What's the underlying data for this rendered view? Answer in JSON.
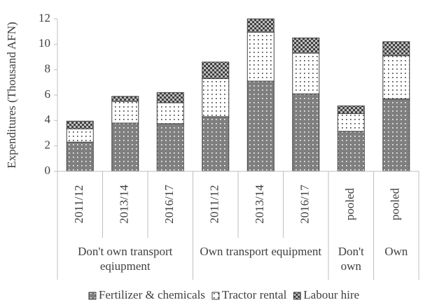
{
  "chart_data": {
    "type": "stacked-bar",
    "y_label": "Expenditures (Thousand AFN)",
    "groups": [
      {
        "label": "Don't own transport eqiupment",
        "categories": [
          "2011/12",
          "2013/14",
          "2016/17"
        ]
      },
      {
        "label": "Own transport equipment",
        "categories": [
          "2011/12",
          "2013/14",
          "2016/17"
        ]
      },
      {
        "label": "Don't own",
        "categories": [
          "pooled"
        ]
      },
      {
        "label": "Own",
        "categories": [
          "pooled"
        ]
      }
    ],
    "series": [
      {
        "name": "Fertilizer & chemicals",
        "color": "#7f7f7f",
        "values": [
          2.3,
          3.8,
          3.75,
          4.3,
          7.1,
          6.1,
          3.15,
          5.7
        ]
      },
      {
        "name": "Tractor rental",
        "color": "#ffffff",
        "values": [
          1.05,
          1.7,
          1.65,
          3.0,
          3.85,
          3.2,
          1.4,
          3.4
        ]
      },
      {
        "name": "Labour hire",
        "color": "#bfbfbf",
        "values": [
          0.6,
          0.4,
          0.8,
          1.3,
          1.05,
          1.2,
          0.6,
          1.1
        ]
      }
    ],
    "ylim": [
      0,
      12
    ],
    "yticks": [
      0,
      2,
      4,
      6,
      8,
      10,
      12
    ]
  }
}
